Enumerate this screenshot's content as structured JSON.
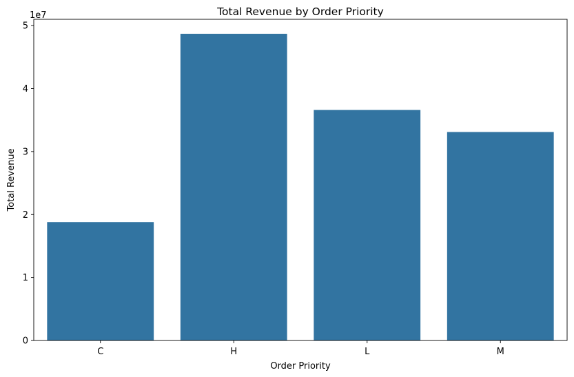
{
  "chart_data": {
    "type": "bar",
    "title": "Total Revenue by Order Priority",
    "xlabel": "Order Priority",
    "ylabel": "Total Revenue",
    "categories": [
      "C",
      "H",
      "L",
      "M"
    ],
    "values": [
      18800000,
      48700000,
      36600000,
      33100000
    ],
    "ylim": [
      0,
      51000000
    ],
    "yticks": [
      0,
      10000000,
      20000000,
      30000000,
      40000000,
      50000000
    ],
    "ytick_labels": [
      "0",
      "1",
      "2",
      "3",
      "4",
      "5"
    ],
    "offset_label": "1e7",
    "bar_color": "#3274a1",
    "grid": false,
    "legend": "none"
  }
}
